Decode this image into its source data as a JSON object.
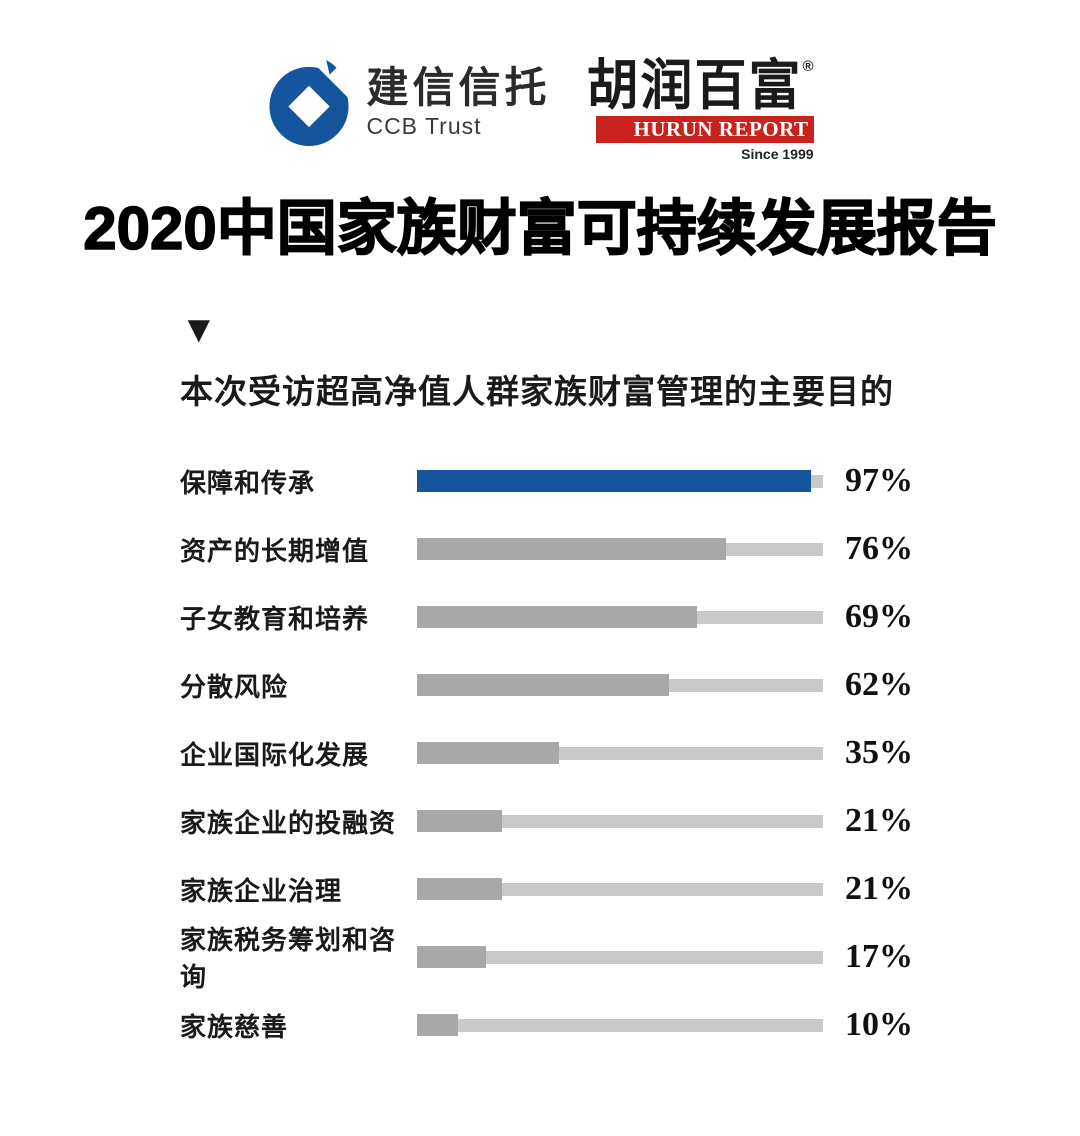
{
  "header": {
    "ccb": {
      "name_cn": "建信信托",
      "name_en": "CCB Trust",
      "logo_color": "#14559e"
    },
    "hurun": {
      "name_cn": "胡润百富",
      "registered_mark": "®",
      "name_en": "HURUN REPORT",
      "since": "Since 1999",
      "bar_color": "#c8231f"
    }
  },
  "title": "2020中国家族财富可持续发展报告",
  "section": {
    "marker": "▼",
    "subtitle": "本次受访超高净值人群家族财富管理的主要目的"
  },
  "chart_data": {
    "type": "bar",
    "orientation": "horizontal",
    "title": "本次受访超高净值人群家族财富管理的主要目的",
    "categories": [
      "保障和传承",
      "资产的长期增值",
      "子女教育和培养",
      "分散风险",
      "企业国际化发展",
      "家族企业的投融资",
      "家族企业治理",
      "家族税务筹划和咨询",
      "家族慈善"
    ],
    "values": [
      97,
      76,
      69,
      62,
      35,
      21,
      21,
      17,
      10
    ],
    "value_suffix": "%",
    "xlim": [
      0,
      100
    ],
    "grid": false,
    "legend": false,
    "highlight_index": 0,
    "colors": {
      "highlight_fill": "#14559e",
      "bar_fill": "#a8a8a8",
      "track": "#c9c9c9"
    }
  }
}
